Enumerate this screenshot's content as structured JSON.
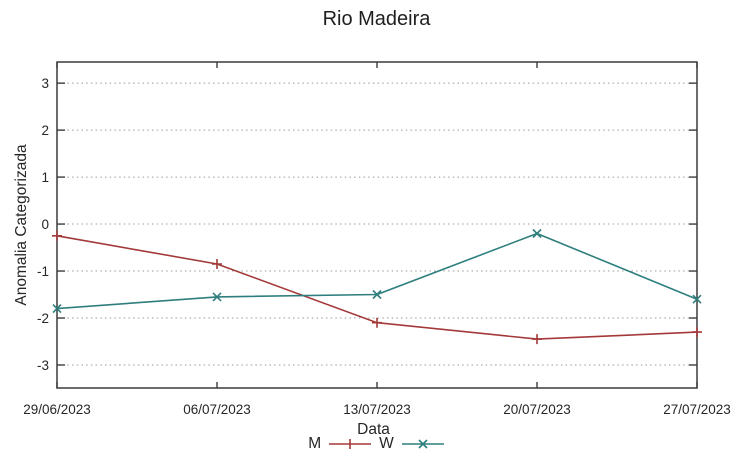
{
  "chart_data": {
    "type": "line",
    "title": "Rio Madeira",
    "xlabel": "Data",
    "ylabel": "Anomalia Categorizada",
    "categories": [
      "29/06/2023",
      "06/07/2023",
      "13/07/2023",
      "20/07/2023",
      "27/07/2023"
    ],
    "yticks": [
      -3,
      -2,
      -1,
      0,
      1,
      2,
      3
    ],
    "ylim": [
      -3.49,
      3.45
    ],
    "grid": "horizontal dotted gridlines at integer y ticks",
    "legend_position": "bottom center, below x-axis label",
    "series": [
      {
        "name": "M",
        "color": "#a33939",
        "marker": "plus",
        "values": [
          -0.25,
          -0.85,
          -2.1,
          -2.45,
          -2.3
        ]
      },
      {
        "name": "W",
        "color": "#2f7e7e",
        "marker": "cross",
        "values": [
          -1.8,
          -1.55,
          -1.5,
          -0.2,
          -1.6
        ]
      }
    ]
  },
  "appearance": {
    "background": "#ffffff",
    "border_color": "#3c3c3c",
    "grid_color": "#9a9a9a",
    "text_color": "#262626"
  }
}
